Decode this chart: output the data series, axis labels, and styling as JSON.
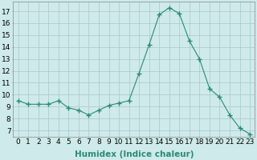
{
  "x": [
    0,
    1,
    2,
    3,
    4,
    5,
    6,
    7,
    8,
    9,
    10,
    11,
    12,
    13,
    14,
    15,
    16,
    17,
    18,
    19,
    20,
    21,
    22,
    23
  ],
  "y": [
    9.5,
    9.2,
    9.2,
    9.2,
    9.5,
    8.9,
    8.7,
    8.3,
    8.7,
    9.1,
    9.3,
    9.5,
    11.8,
    14.2,
    16.7,
    17.3,
    16.8,
    14.5,
    13.0,
    10.5,
    9.8,
    8.3,
    7.2,
    6.7
  ],
  "line_color": "#2d8b72",
  "marker": "+",
  "marker_size": 4,
  "bg_color": "#ceeaea",
  "grid_color": "#a8c8c8",
  "xlabel": "Humidex (Indice chaleur)",
  "xlabel_fontsize": 7.5,
  "ylabel_ticks": [
    7,
    8,
    9,
    10,
    11,
    12,
    13,
    14,
    15,
    16,
    17
  ],
  "ylim": [
    6.5,
    17.8
  ],
  "xlim": [
    -0.5,
    23.5
  ],
  "tick_fontsize": 6.5
}
